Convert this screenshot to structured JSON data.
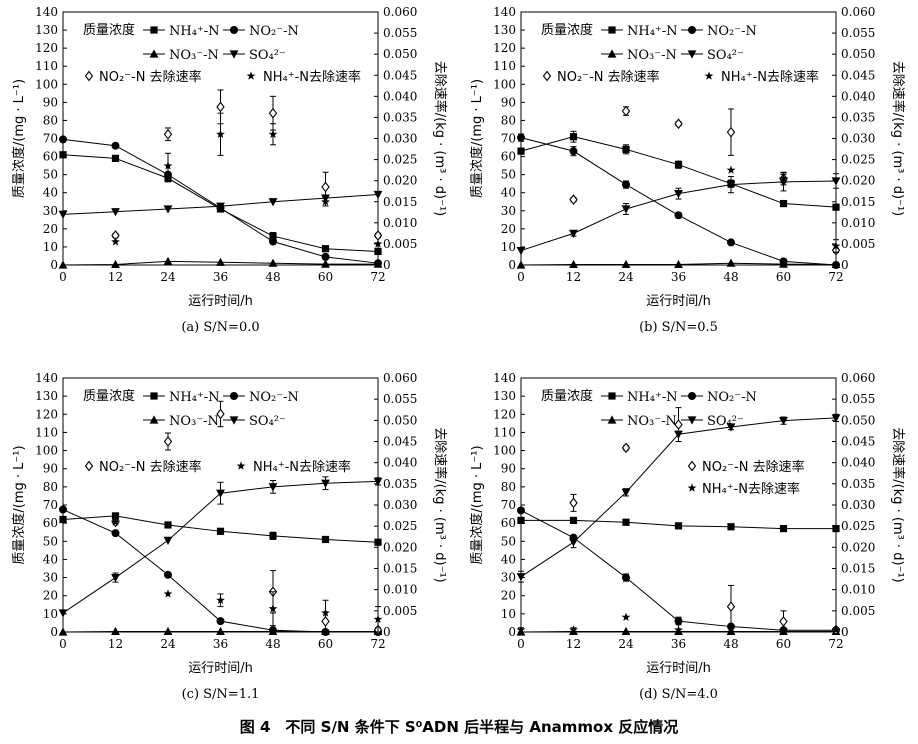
{
  "figure_caption": "图 4　不同 S/N 条件下 S⁰ADN 后半程与 Anammox 反应情况",
  "colors": {
    "ink": "#000000",
    "background": "#ffffff"
  },
  "chart_data": [
    {
      "type": "line",
      "panel_label": "(a) S/N=0.0",
      "xlabel": "运行时间/h",
      "ylabel": "质量浓度/(mg · L⁻¹)",
      "y2label": "去除速率/(kg · (m³ · d)⁻¹)",
      "x_ticks": [
        0,
        12,
        24,
        36,
        48,
        60,
        72
      ],
      "xlim": [
        0,
        72
      ],
      "ylim": [
        0,
        140
      ],
      "y_ticks": [
        0,
        10,
        20,
        30,
        40,
        50,
        60,
        70,
        80,
        90,
        100,
        110,
        120,
        130,
        140
      ],
      "y2lim": [
        0,
        0.06
      ],
      "y2_ticks": [
        "0",
        "0.005",
        "0.010",
        "0.015",
        "0.020",
        "0.025",
        "0.030",
        "0.035",
        "0.040",
        "0.045",
        "0.050",
        "0.055",
        "0.060"
      ],
      "legend": {
        "title": "质量浓度",
        "nh4": "NH₄⁺-N",
        "no2": "NO₂⁻-N",
        "no3": "NO₃⁻-N",
        "so4": "SO₄²⁻",
        "no2_rate": "NO₂⁻-N 去除速率",
        "nh4_rate": "NH₄⁺-N去除速率"
      },
      "series": [
        {
          "name": "NH₄⁺-N",
          "marker": "square",
          "x": [
            0,
            12,
            24,
            36,
            48,
            60,
            72
          ],
          "y": [
            61,
            59,
            48,
            31,
            16,
            9,
            7.5
          ],
          "err": [
            0,
            0,
            2,
            0,
            2,
            0,
            0
          ]
        },
        {
          "name": "NO₂⁻-N",
          "marker": "circle",
          "x": [
            0,
            12,
            24,
            36,
            48,
            60,
            72
          ],
          "y": [
            69.5,
            66,
            50,
            31.5,
            13,
            4.5,
            1
          ],
          "err": [
            0,
            0,
            0,
            0,
            0,
            0,
            0
          ]
        },
        {
          "name": "NO₃⁻-N",
          "marker": "triangle-up",
          "x": [
            0,
            12,
            24,
            36,
            48,
            60,
            72
          ],
          "y": [
            0,
            0.3,
            2,
            1.5,
            1,
            0.5,
            0.5
          ],
          "err": [
            0,
            0,
            0,
            0,
            0,
            0,
            0
          ]
        },
        {
          "name": "SO₄²⁻",
          "marker": "triangle-down",
          "x": [
            0,
            12,
            24,
            36,
            48,
            60,
            72
          ],
          "y": [
            28,
            29.5,
            31,
            32.5,
            35,
            37,
            39
          ],
          "err": [
            0,
            0,
            0,
            0,
            0,
            0,
            0
          ]
        }
      ],
      "rate_series": [
        {
          "name": "NO₂⁻-N 去除速率",
          "marker": "diamond-open",
          "x": [
            12,
            24,
            36,
            48,
            60,
            72
          ],
          "y": [
            0.007,
            0.031,
            0.0375,
            0.036,
            0.0185,
            0.007
          ],
          "err": [
            0.0005,
            0.0015,
            0.004,
            0.004,
            0.0035,
            0.0005
          ]
        },
        {
          "name": "NH₄⁺-N去除速率",
          "marker": "star",
          "x": [
            12,
            24,
            36,
            48,
            60,
            72
          ],
          "y": [
            0.0055,
            0.0235,
            0.031,
            0.031,
            0.015,
            0.005
          ],
          "err": [
            0,
            0.003,
            0.005,
            0.0025,
            0.001,
            0
          ]
        }
      ]
    },
    {
      "type": "line",
      "panel_label": "(b) S/N=0.5",
      "xlabel": "运行时间/h",
      "ylabel": "质量浓度/(mg · L⁻¹)",
      "y2label": "去除速率/(kg · (m³ · d)⁻¹)",
      "x_ticks": [
        0,
        12,
        24,
        36,
        48,
        60,
        72
      ],
      "xlim": [
        0,
        72
      ],
      "ylim": [
        0,
        140
      ],
      "y_ticks": [
        0,
        10,
        20,
        30,
        40,
        50,
        60,
        70,
        80,
        90,
        100,
        110,
        120,
        130,
        140
      ],
      "y2lim": [
        0,
        0.06
      ],
      "y2_ticks": [
        "0",
        "0.005",
        "0.010",
        "0.015",
        "0.020",
        "0.025",
        "0.030",
        "0.035",
        "0.040",
        "0.045",
        "0.050",
        "0.055",
        "0.060"
      ],
      "legend": {
        "title": "质量浓度",
        "nh4": "NH₄⁺-N",
        "no2": "NO₂⁻-N",
        "no3": "NO₃⁻-N",
        "so4": "SO₄²⁻",
        "no2_rate": "NO₂⁻-N 去除速率",
        "nh4_rate": "NH₄⁺-N去除速率"
      },
      "series": [
        {
          "name": "NH₄⁺-N",
          "marker": "square",
          "x": [
            0,
            12,
            24,
            36,
            48,
            60,
            72
          ],
          "y": [
            63,
            71,
            64,
            55.5,
            45,
            34,
            32
          ],
          "err": [
            0,
            3,
            2.5,
            2,
            2,
            0,
            0
          ]
        },
        {
          "name": "NO₂⁻-N",
          "marker": "circle",
          "x": [
            0,
            12,
            24,
            36,
            48,
            60,
            72
          ],
          "y": [
            70.5,
            63,
            44.5,
            27.5,
            12.5,
            2,
            0
          ],
          "err": [
            2,
            2.5,
            2,
            1.5,
            0,
            0,
            0
          ]
        },
        {
          "name": "NO₃⁻-N",
          "marker": "triangle-up",
          "x": [
            0,
            12,
            24,
            36,
            48,
            60,
            72
          ],
          "y": [
            0,
            0.3,
            0.3,
            0.3,
            1,
            0.5,
            0.3
          ],
          "err": [
            0,
            0,
            0,
            0,
            0,
            0,
            0
          ]
        },
        {
          "name": "SO₄²⁻",
          "marker": "triangle-down",
          "x": [
            0,
            12,
            24,
            36,
            48,
            60,
            72
          ],
          "y": [
            8,
            17.5,
            31,
            39.5,
            44.5,
            46,
            46.5
          ],
          "err": [
            0,
            1.5,
            3,
            3,
            4.5,
            5,
            4
          ]
        }
      ],
      "rate_series": [
        {
          "name": "NO₂⁻-N 去除速率",
          "marker": "diamond-open",
          "x": [
            12,
            24,
            36,
            48,
            60,
            72
          ],
          "y": [
            0.0155,
            0.0365,
            0.0335,
            0.0315,
            0.0205,
            0.0035
          ],
          "err": [
            0.0005,
            0.001,
            0.0005,
            0.0055,
            0.001,
            0.0005
          ]
        },
        {
          "name": "NH₄⁺-N去除速率",
          "marker": "star",
          "x": [
            48,
            60,
            72
          ],
          "y": [
            0.0225,
            0.0205,
            0.0045
          ],
          "err": [
            0,
            0.0015,
            0.0015
          ]
        }
      ]
    },
    {
      "type": "line",
      "panel_label": "(c) S/N=1.1",
      "xlabel": "运行时间/h",
      "ylabel": "质量浓度/(mg · L⁻¹)",
      "y2label": "去除速率/(kg · (m³ · d)⁻¹)",
      "x_ticks": [
        0,
        12,
        24,
        36,
        48,
        60,
        72
      ],
      "xlim": [
        0,
        72
      ],
      "ylim": [
        0,
        140
      ],
      "y_ticks": [
        0,
        10,
        20,
        30,
        40,
        50,
        60,
        70,
        80,
        90,
        100,
        110,
        120,
        130,
        140
      ],
      "y2lim": [
        0,
        0.06
      ],
      "y2_ticks": [
        "0",
        "0.005",
        "0.010",
        "0.015",
        "0.020",
        "0.025",
        "0.030",
        "0.035",
        "0.040",
        "0.045",
        "0.050",
        "0.055",
        "0.060"
      ],
      "legend": {
        "title": "质量浓度",
        "nh4": "NH₄⁺-N",
        "no2": "NO₂⁻-N",
        "no3": "NO₃⁻-N",
        "so4": "SO₄²⁻",
        "no2_rate": "NO₂⁻-N 去除速率",
        "nh4_rate": "NH₄⁺-N去除速率"
      },
      "series": [
        {
          "name": "NH₄⁺-N",
          "marker": "square",
          "x": [
            0,
            12,
            24,
            36,
            48,
            60,
            72
          ],
          "y": [
            62,
            64,
            59,
            55.5,
            53,
            51,
            49.5
          ],
          "err": [
            0,
            0,
            0,
            0,
            2,
            0,
            0
          ]
        },
        {
          "name": "NO₂⁻-N",
          "marker": "circle",
          "x": [
            0,
            12,
            24,
            36,
            48,
            60,
            72
          ],
          "y": [
            67.5,
            54.5,
            31.5,
            6,
            1,
            0,
            0
          ],
          "err": [
            0,
            0,
            0,
            0,
            0,
            0,
            0
          ]
        },
        {
          "name": "NO₃⁻-N",
          "marker": "triangle-up",
          "x": [
            0,
            12,
            24,
            36,
            48,
            60,
            72
          ],
          "y": [
            0,
            0.3,
            0.3,
            0.3,
            0.3,
            0.3,
            0.3
          ],
          "err": [
            0,
            0,
            0,
            0,
            0,
            0,
            0
          ]
        },
        {
          "name": "SO₄²⁻",
          "marker": "triangle-down",
          "x": [
            0,
            12,
            24,
            36,
            48,
            60,
            72
          ],
          "y": [
            10.5,
            30,
            50.5,
            76.5,
            80,
            82,
            83
          ],
          "err": [
            0,
            2.5,
            0,
            6,
            3.5,
            3.5,
            2
          ]
        }
      ],
      "rate_series": [
        {
          "name": "NO₂⁻-N 去除速率",
          "marker": "diamond-open",
          "x": [
            12,
            24,
            36,
            48,
            60,
            72
          ],
          "y": [
            0.026,
            0.045,
            0.0515,
            0.0095,
            0.0025,
            0.0005
          ],
          "err": [
            0.0005,
            0.002,
            0.003,
            0.005,
            0.005,
            0.0005
          ]
        },
        {
          "name": "NH₄⁺-N去除速率",
          "marker": "star",
          "x": [
            12,
            24,
            36,
            48,
            60,
            72
          ],
          "y": [
            0.026,
            0.009,
            0.0075,
            0.0055,
            0.0045,
            0.003
          ],
          "err": [
            0,
            0,
            0.0015,
            0.004,
            0,
            0.003
          ]
        }
      ]
    },
    {
      "type": "line",
      "panel_label": "(d) S/N=4.0",
      "xlabel": "运行时间/h",
      "ylabel": "质量浓度/(mg · L⁻¹)",
      "y2label": "去除速率/(kg · (m³ · d)⁻¹)",
      "x_ticks": [
        0,
        12,
        24,
        36,
        48,
        60,
        72
      ],
      "xlim": [
        0,
        72
      ],
      "ylim": [
        0,
        140
      ],
      "y_ticks": [
        0,
        10,
        20,
        30,
        40,
        50,
        60,
        70,
        80,
        90,
        100,
        110,
        120,
        130,
        140
      ],
      "y2lim": [
        0,
        0.06
      ],
      "y2_ticks": [
        "0",
        "0.005",
        "0.010",
        "0.015",
        "0.020",
        "0.025",
        "0.030",
        "0.035",
        "0.040",
        "0.045",
        "0.050",
        "0.055",
        "0.060"
      ],
      "legend": {
        "title": "质量浓度",
        "nh4": "NH₄⁺-N",
        "no2": "NO₂⁻-N",
        "no3": "NO₃⁻-N",
        "so4": "SO₄²⁻",
        "no2_rate": "NO₂⁻-N 去除速率",
        "nh4_rate": "NH₄⁺-N去除速率"
      },
      "series": [
        {
          "name": "NH₄⁺-N",
          "marker": "square",
          "x": [
            0,
            12,
            24,
            36,
            48,
            60,
            72
          ],
          "y": [
            61.5,
            61.5,
            60.5,
            58.5,
            58,
            57,
            57
          ],
          "err": [
            0,
            0,
            0,
            0,
            0,
            0,
            0
          ]
        },
        {
          "name": "NO₂⁻-N",
          "marker": "circle",
          "x": [
            0,
            12,
            24,
            36,
            48,
            60,
            72
          ],
          "y": [
            67,
            52,
            30,
            6,
            3,
            1,
            1
          ],
          "err": [
            0,
            0,
            2,
            2,
            1,
            0,
            0
          ]
        },
        {
          "name": "NO₃⁻-N",
          "marker": "triangle-up",
          "x": [
            0,
            12,
            24,
            36,
            48,
            60,
            72
          ],
          "y": [
            0,
            0.3,
            0.3,
            0.3,
            0.3,
            0.3,
            0.3
          ],
          "err": [
            0,
            0,
            0,
            0,
            0,
            0,
            0
          ]
        },
        {
          "name": "SO₄²⁻",
          "marker": "triangle-down",
          "x": [
            0,
            12,
            24,
            36,
            48,
            60,
            72
          ],
          "y": [
            30.5,
            49.5,
            77,
            109,
            113,
            116.5,
            118
          ],
          "err": [
            3,
            3,
            2,
            0,
            1.5,
            2,
            2
          ]
        }
      ],
      "rate_series": [
        {
          "name": "NO₂⁻-N 去除速率",
          "marker": "diamond-open",
          "x": [
            12,
            24,
            36,
            48,
            60,
            72
          ],
          "y": [
            0.0305,
            0.0435,
            0.049,
            0.006,
            0.0025,
            0.0005
          ],
          "err": [
            0.002,
            0.0005,
            0.004,
            0.005,
            0.0025,
            0.0005
          ]
        },
        {
          "name": "NH₄⁺-N去除速率",
          "marker": "star",
          "x": [
            0,
            12,
            24,
            36,
            48,
            60,
            72
          ],
          "y": [
            0.0005,
            0.0005,
            0.0035,
            0.0005,
            0.001,
            0.0005,
            0.0005
          ],
          "err": [
            0.0005,
            0.0005,
            0,
            0.003,
            0,
            0,
            0
          ]
        }
      ]
    }
  ]
}
